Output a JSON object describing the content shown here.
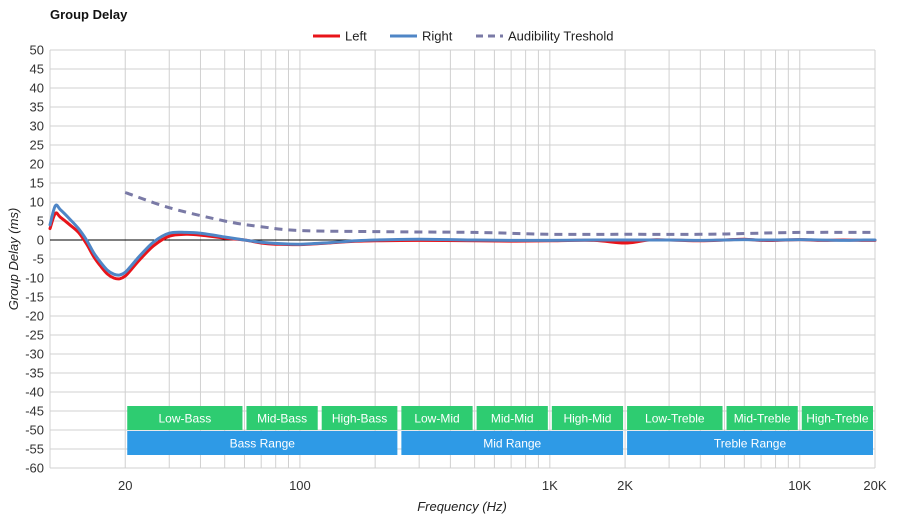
{
  "chart_data": {
    "type": "line",
    "title": "Group Delay",
    "xlabel": "Frequency (Hz)",
    "ylabel": "Group Delay (ms)",
    "x_scale": "log",
    "xlim": [
      10,
      20000
    ],
    "ylim": [
      -60,
      50
    ],
    "y_ticks": [
      50,
      45,
      40,
      35,
      30,
      25,
      20,
      15,
      10,
      5,
      0,
      -5,
      -10,
      -15,
      -20,
      -25,
      -30,
      -35,
      -40,
      -45,
      -50,
      -55,
      -60
    ],
    "x_tick_labels": [
      {
        "value": 20,
        "label": "20"
      },
      {
        "value": 100,
        "label": "100"
      },
      {
        "value": 1000,
        "label": "1K"
      },
      {
        "value": 2000,
        "label": "2K"
      },
      {
        "value": 10000,
        "label": "10K"
      },
      {
        "value": 20000,
        "label": "20K"
      }
    ],
    "grid": true,
    "legend_position": "top-center",
    "series": [
      {
        "name": "Left",
        "color": "#e8141a",
        "style": "solid",
        "x": [
          10,
          10.5,
          11,
          12,
          13,
          14,
          15,
          16,
          17,
          18,
          19,
          20,
          21,
          23,
          26,
          30,
          35,
          40,
          50,
          60,
          70,
          80,
          100,
          130,
          160,
          200,
          300,
          500,
          700,
          1000,
          1500,
          2000,
          2500,
          3000,
          4000,
          5000,
          6000,
          7000,
          8000,
          10000,
          12000,
          15000,
          18000,
          20000
        ],
        "y": [
          3,
          7,
          6,
          4,
          2,
          -1,
          -4.5,
          -7,
          -9,
          -10,
          -10.2,
          -9.5,
          -8,
          -5,
          -1.5,
          1,
          1.5,
          1.3,
          0.5,
          0,
          -0.8,
          -1.1,
          -1.2,
          -0.8,
          -0.4,
          -0.2,
          -0.1,
          -0.2,
          -0.3,
          -0.2,
          -0.1,
          -0.8,
          0,
          0,
          -0.2,
          0,
          0.2,
          -0.1,
          -0.1,
          0.1,
          -0.1,
          0,
          -0.1,
          -0.1
        ]
      },
      {
        "name": "Right",
        "color": "#4f86c6",
        "style": "solid",
        "x": [
          10,
          10.5,
          11,
          12,
          13,
          14,
          15,
          16,
          17,
          18,
          19,
          20,
          21,
          23,
          26,
          30,
          35,
          40,
          50,
          60,
          70,
          80,
          100,
          130,
          160,
          200,
          300,
          500,
          700,
          1000,
          1500,
          2000,
          2500,
          3000,
          4000,
          5000,
          6000,
          7000,
          8000,
          10000,
          12000,
          15000,
          18000,
          20000
        ],
        "y": [
          4,
          9,
          8,
          5.5,
          3,
          0,
          -3.5,
          -6,
          -8,
          -9,
          -9.2,
          -8.5,
          -7,
          -4,
          -0.5,
          1.8,
          2,
          1.8,
          0.8,
          0,
          -0.6,
          -0.9,
          -1.1,
          -0.7,
          -0.3,
          0,
          0.2,
          0,
          -0.1,
          -0.1,
          0,
          0,
          0,
          0,
          -0.1,
          0,
          0.1,
          0,
          0,
          0.1,
          0,
          -0.1,
          0,
          0
        ]
      },
      {
        "name": "Audibility Treshold",
        "color": "#7a7aa6",
        "style": "dashed",
        "x": [
          20,
          30,
          50,
          70,
          100,
          200,
          500,
          1000,
          2000,
          4000,
          6000,
          10000,
          20000
        ],
        "y": [
          12.5,
          8.5,
          5,
          3.5,
          2.5,
          2.2,
          2,
          1.5,
          1.5,
          1.5,
          1.7,
          2,
          2
        ]
      }
    ],
    "range_bands": [
      {
        "row": 1,
        "label": "Low-Bass",
        "from": 20,
        "to": 60,
        "color": "#2ecc71"
      },
      {
        "row": 1,
        "label": "Mid-Bass",
        "from": 60,
        "to": 120,
        "color": "#2ecc71"
      },
      {
        "row": 1,
        "label": "High-Bass",
        "from": 120,
        "to": 250,
        "color": "#2ecc71"
      },
      {
        "row": 1,
        "label": "Low-Mid",
        "from": 250,
        "to": 500,
        "color": "#2ecc71"
      },
      {
        "row": 1,
        "label": "Mid-Mid",
        "from": 500,
        "to": 1000,
        "color": "#2ecc71"
      },
      {
        "row": 1,
        "label": "High-Mid",
        "from": 1000,
        "to": 2000,
        "color": "#2ecc71"
      },
      {
        "row": 1,
        "label": "Low-Treble",
        "from": 2000,
        "to": 5000,
        "color": "#2ecc71"
      },
      {
        "row": 1,
        "label": "Mid-Treble",
        "from": 5000,
        "to": 10000,
        "color": "#2ecc71"
      },
      {
        "row": 1,
        "label": "High-Treble",
        "from": 10000,
        "to": 20000,
        "color": "#2ecc71"
      },
      {
        "row": 2,
        "label": "Bass Range",
        "from": 20,
        "to": 250,
        "color": "#2e9ae6"
      },
      {
        "row": 2,
        "label": "Mid Range",
        "from": 250,
        "to": 2000,
        "color": "#2e9ae6"
      },
      {
        "row": 2,
        "label": "Treble Range",
        "from": 2000,
        "to": 20000,
        "color": "#2e9ae6"
      }
    ]
  }
}
